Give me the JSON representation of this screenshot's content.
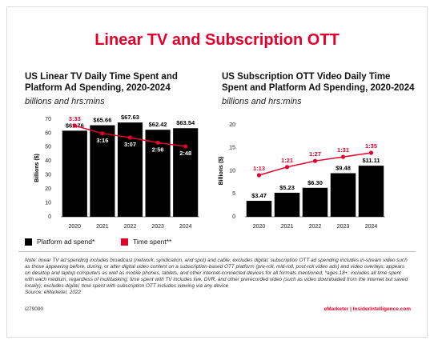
{
  "title": "Linear TV and Subscription OTT",
  "chart_data": [
    {
      "type": "bar-line",
      "title": "US Linear TV Daily Time Spent and Platform Ad Spending, 2020-2024",
      "subtitle": "billions and hrs:mins",
      "y_label": "Billions ($)",
      "categories": [
        "2020",
        "2021",
        "2022",
        "2023",
        "2024"
      ],
      "ylim": [
        0,
        70
      ],
      "yticks": [
        0,
        10,
        20,
        30,
        40,
        50,
        60,
        70
      ],
      "series": [
        {
          "name": "Platform ad spend*",
          "color": "#000000",
          "values": [
            61.76,
            65.66,
            67.63,
            62.42,
            63.54
          ],
          "value_labels": [
            "$61.76",
            "$65.66",
            "$67.63",
            "$62.42",
            "$63.54"
          ]
        },
        {
          "name": "Time spent**",
          "color": "#e4002b",
          "values": [
            213,
            196,
            187,
            176,
            168
          ],
          "value_labels": [
            "3:33",
            "3:16",
            "3:07",
            "2:56",
            "2:48"
          ]
        }
      ]
    },
    {
      "type": "bar-line",
      "title": "US Subscription OTT Video Daily Time Spent and Platform Ad Spending, 2020-2024",
      "subtitle": "billions and hrs:mins",
      "y_label": "Billions ($)",
      "categories": [
        "2020",
        "2021",
        "2022",
        "2023",
        "2024"
      ],
      "ylim": [
        0,
        20
      ],
      "yticks": [
        0,
        5,
        10,
        15,
        20
      ],
      "series": [
        {
          "name": "Platform ad spend*",
          "color": "#000000",
          "values": [
            3.47,
            5.23,
            6.3,
            9.48,
            11.11
          ],
          "value_labels": [
            "$3.47",
            "$5.23",
            "$6.30",
            "$9.48",
            "$11.11"
          ]
        },
        {
          "name": "Time spent**",
          "color": "#e4002b",
          "values": [
            73,
            81,
            87,
            91,
            95
          ],
          "value_labels": [
            "1:13",
            "1:21",
            "1:27",
            "1:31",
            "1:35"
          ]
        }
      ]
    }
  ],
  "note": "Note: linear TV ad spending includes broadcast (network, syndication, and spot) and cable; excludes digital; subscription OTT ad spending includes in-stream video such as those appearing before, during, or after digital video content on a subscription-based OTT platform (pre-roll, mid-roll, post-roll video ads) and video overlays; appears on desktop and laptop computers as well as mobile phones, tablets, and other internet-connected devices for all formats mentioned; *ages 18+; includes all time spent with each medium, regardless of multitasking; time spent with TV includes live, DVR, and other prerecorded video (such as video downloaded from the internet but saved locally); excludes digital; time spent with subscription OTT includes viewing via any device",
  "source": "Source: eMarketer, 2022",
  "report_id": "i279090",
  "footer": "eMarketer | InsiderIntelligence.com"
}
